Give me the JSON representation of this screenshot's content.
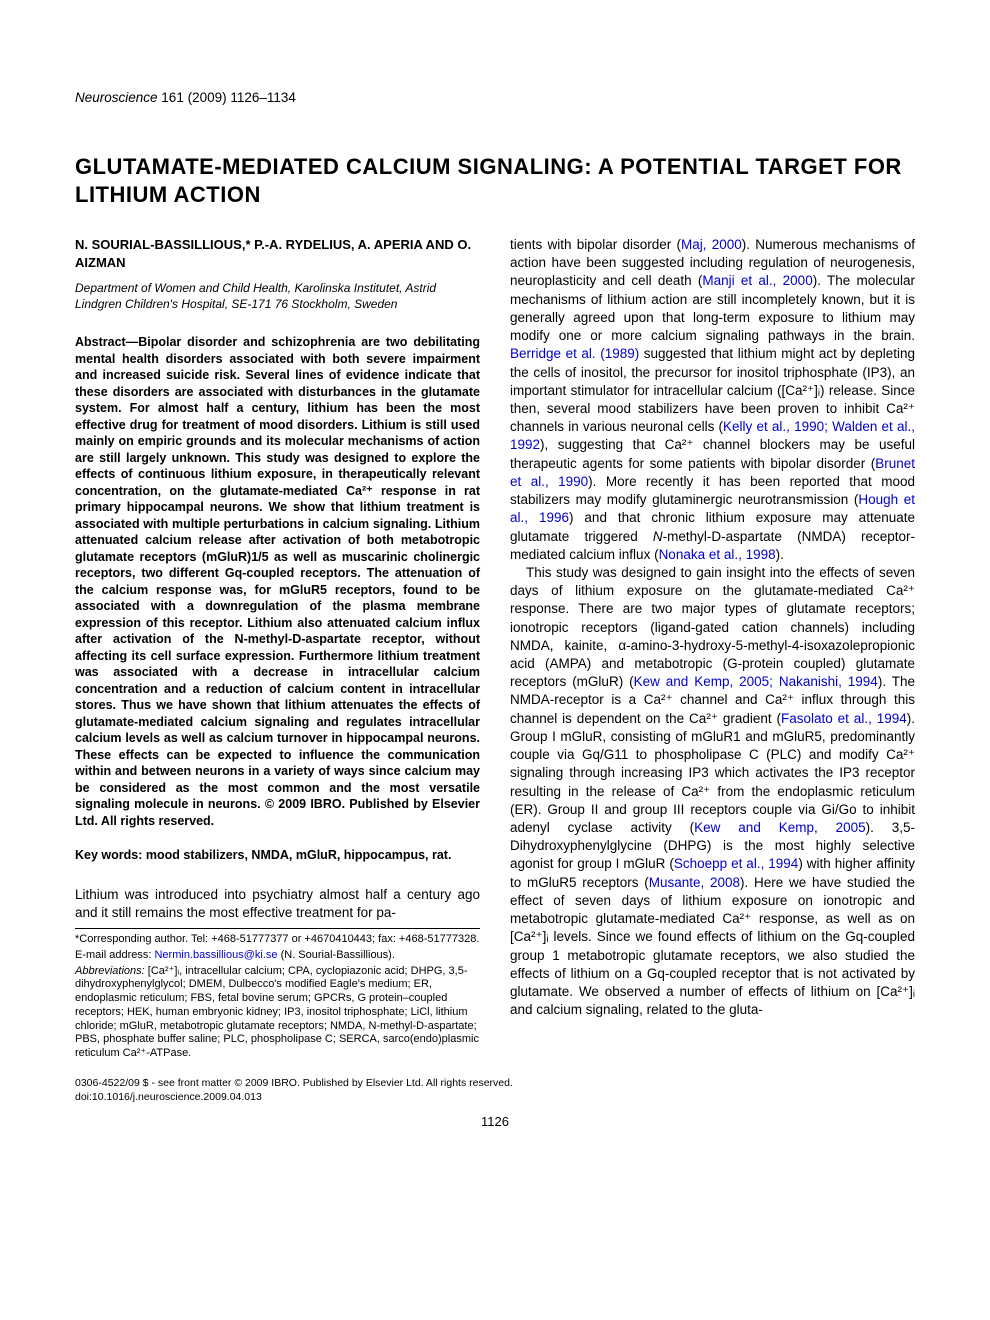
{
  "journal": {
    "name": "Neuroscience",
    "citation": " 161 (2009) 1126–1134"
  },
  "title": "GLUTAMATE-MEDIATED CALCIUM SIGNALING: A POTENTIAL TARGET FOR LITHIUM ACTION",
  "authors": "N. SOURIAL-BASSILLIOUS,* P.-A. RYDELIUS, A. APERIA AND O. AIZMAN",
  "affiliation": "Department of Women and Child Health, Karolinska Institutet, Astrid Lindgren Children's Hospital, SE-171 76 Stockholm, Sweden",
  "abstract": "Abstract—Bipolar disorder and schizophrenia are two debilitating mental health disorders associated with both severe impairment and increased suicide risk. Several lines of evidence indicate that these disorders are associated with disturbances in the glutamate system. For almost half a century, lithium has been the most effective drug for treatment of mood disorders. Lithium is still used mainly on empiric grounds and its molecular mechanisms of action are still largely unknown. This study was designed to explore the effects of continuous lithium exposure, in therapeutically relevant concentration, on the glutamate-mediated Ca²⁺ response in rat primary hippocampal neurons. We show that lithium treatment is associated with multiple perturbations in calcium signaling. Lithium attenuated calcium release after activation of both metabotropic glutamate receptors (mGluR)1/5 as well as muscarinic cholinergic receptors, two different Gq-coupled receptors. The attenuation of the calcium response was, for mGluR5 receptors, found to be associated with a downregulation of the plasma membrane expression of this receptor. Lithium also attenuated calcium influx after activation of the N-methyl-D-aspartate receptor, without affecting its cell surface expression. Furthermore lithium treatment was associated with a decrease in intracellular calcium concentration and a reduction of calcium content in intracellular stores. Thus we have shown that lithium attenuates the effects of glutamate-mediated calcium signaling and regulates intracellular calcium levels as well as calcium turnover in hippocampal neurons. These effects can be expected to influence the communication within and between neurons in a variety of ways since calcium may be considered as the most common and the most versatile signaling molecule in neurons. © 2009 IBRO. Published by Elsevier Ltd. All rights reserved.",
  "keywords": "Key words: mood stabilizers, NMDA, mGluR, hippocampus, rat.",
  "intro_lead": "Lithium was introduced into psychiatry almost half a century ago and it still remains the most effective treatment for pa-",
  "footnotes": {
    "corr": "*Corresponding author. Tel: +468-51777377 or +4670410443; fax: +468-51777328.",
    "email_label": "E-mail address: ",
    "email": "Nermin.bassillious@ki.se",
    "email_tail": " (N. Sourial-Bassillious).",
    "abbrev": "Abbreviations: [Ca²⁺]ᵢ, intracellular calcium; CPA, cyclopiazonic acid; DHPG, 3,5-dihydroxyphenylglycol; DMEM, Dulbecco's modified Eagle's medium; ER, endoplasmic reticulum; FBS, fetal bovine serum; GPCRs, G protein–coupled receptors; HEK, human embryonic kidney; IP3, inositol triphosphate; LiCl, lithium chloride; mGluR, metabotropic glutamate receptors; NMDA, N-methyl-D-aspartate; PBS, phosphate buffer saline; PLC, phospholipase C; SERCA, sarco(endo)plasmic reticulum Ca²⁺-ATPase."
  },
  "right_col": {
    "p1a": "tients with bipolar disorder (",
    "maj": "Maj, 2000",
    "p1b": "). Numerous mechanisms of action have been suggested including regulation of neurogenesis, neuroplasticity and cell death (",
    "manji": "Manji et al., 2000",
    "p1c": "). The molecular mechanisms of lithium action are still incompletely known, but it is generally agreed upon that long-term exposure to lithium may modify one or more calcium signaling pathways in the brain. ",
    "berridge": "Berridge et al. (1989)",
    "p1d": " suggested that lithium might act by depleting the cells of inositol, the precursor for inositol triphosphate (IP3), an important stimulator for intracellular calcium ([Ca²⁺]ᵢ) release. Since then, several mood stabilizers have been proven to inhibit Ca²⁺ channels in various neuronal cells (",
    "kelly": "Kelly et al., 1990; Walden et al., 1992",
    "p1e": "), suggesting that Ca²⁺ channel blockers may be useful therapeutic agents for some patients with bipolar disorder (",
    "brunet": "Brunet et al., 1990",
    "p1f": "). More recently it has been reported that mood stabilizers may modify glutaminergic neurotransmission (",
    "hough": "Hough et al., 1996",
    "p1g": ") and that chronic lithium exposure may attenuate glutamate triggered ",
    "nmda_ital": "N",
    "p1h": "-methyl-",
    "d_small": "D",
    "p1i": "-aspartate (NMDA) receptor-mediated calcium influx (",
    "nonaka": "Nonaka et al., 1998",
    "p1j": ").",
    "p2a": "This study was designed to gain insight into the effects of seven days of lithium exposure on the glutamate-mediated Ca²⁺ response. There are two major types of glutamate receptors; ionotropic receptors (ligand-gated cation channels) including NMDA, kainite, α-amino-3-hydroxy-5-methyl-4-isoxazolepropionic acid (AMPA) and metabotropic (G-protein coupled) glutamate receptors (mGluR) (",
    "kew1": "Kew and Kemp, 2005; Nakanishi, 1994",
    "p2b": "). The NMDA-receptor is a Ca²⁺ channel and Ca²⁺ influx through this channel is dependent on the Ca²⁺ gradient (",
    "fasolato": "Fasolato et al., 1994",
    "p2c": "). Group I mGluR, consisting of mGluR1 and mGluR5, predominantly couple via Gq/G11 to phospholipase C (PLC) and modify Ca²⁺ signaling through increasing IP3 which activates the IP3 receptor resulting in the release of Ca²⁺ from the endoplasmic reticulum (ER). Group II and group III receptors couple via Gi/Go to inhibit adenyl cyclase activity (",
    "kew2": "Kew and Kemp, 2005",
    "p2d": "). 3,5-Dihydroxyphenylglycine (DHPG) is the most highly selective agonist for group I mGluR (",
    "schoepp": "Schoepp et al., 1994",
    "p2e": ") with higher affinity to mGluR5 receptors (",
    "musante": "Musante, 2008",
    "p2f": "). Here we have studied the effect of seven days of lithium exposure on ionotropic and metabotropic glutamate-mediated Ca²⁺ response, as well as on [Ca²⁺]ᵢ levels. Since we found effects of lithium on the Gq-coupled group 1 metabotropic glutamate receptors, we also studied the effects of lithium on a Gq-coupled receptor that is not activated by glutamate. We observed a number of effects of lithium on [Ca²⁺]ᵢ and calcium signaling, related to the gluta-"
  },
  "copyright": {
    "line1": "0306-4522/09 $ - see front matter © 2009 IBRO. Published by Elsevier Ltd. All rights reserved.",
    "line2": "doi:10.1016/j.neuroscience.2009.04.013"
  },
  "pagenum": "1126",
  "colors": {
    "link": "#0000cc",
    "text": "#000000",
    "bg": "#ffffff"
  }
}
